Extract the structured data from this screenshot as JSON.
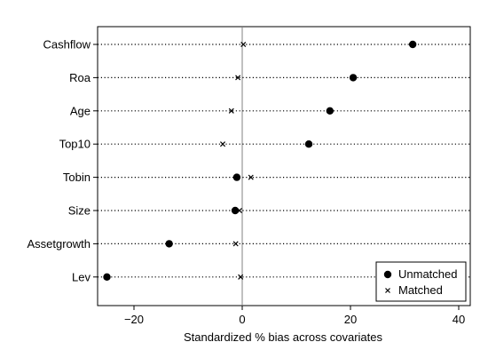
{
  "chart_data": {
    "type": "scatter",
    "xlabel": "Standardized % bias across covariates",
    "xlim": [
      -27,
      42
    ],
    "xticks": [
      -20,
      0,
      20,
      40
    ],
    "xtick_labels": [
      "−20",
      "0",
      "20",
      "40"
    ],
    "reference_line_x": 0,
    "grid": "dotted horizontal lines at each covariate",
    "legend_position": "bottom-right",
    "categories": [
      "Cashflow",
      "Roa",
      "Age",
      "Top10",
      "Tobin",
      "Size",
      "Assetgrowth",
      "Lev"
    ],
    "series": [
      {
        "name": "Unmatched",
        "marker": "filled-circle",
        "values": [
          31.5,
          20.5,
          16.2,
          12.3,
          -1.0,
          -1.3,
          -13.5,
          -25.0
        ]
      },
      {
        "name": "Matched",
        "marker": "x",
        "values": [
          0.2,
          -0.8,
          -2.0,
          -3.6,
          1.6,
          -0.5,
          -1.2,
          -0.3
        ]
      }
    ],
    "colors": {
      "markers": "#000000",
      "grid": "#000000",
      "reference_line": "#808080",
      "frame": "#000000"
    }
  }
}
